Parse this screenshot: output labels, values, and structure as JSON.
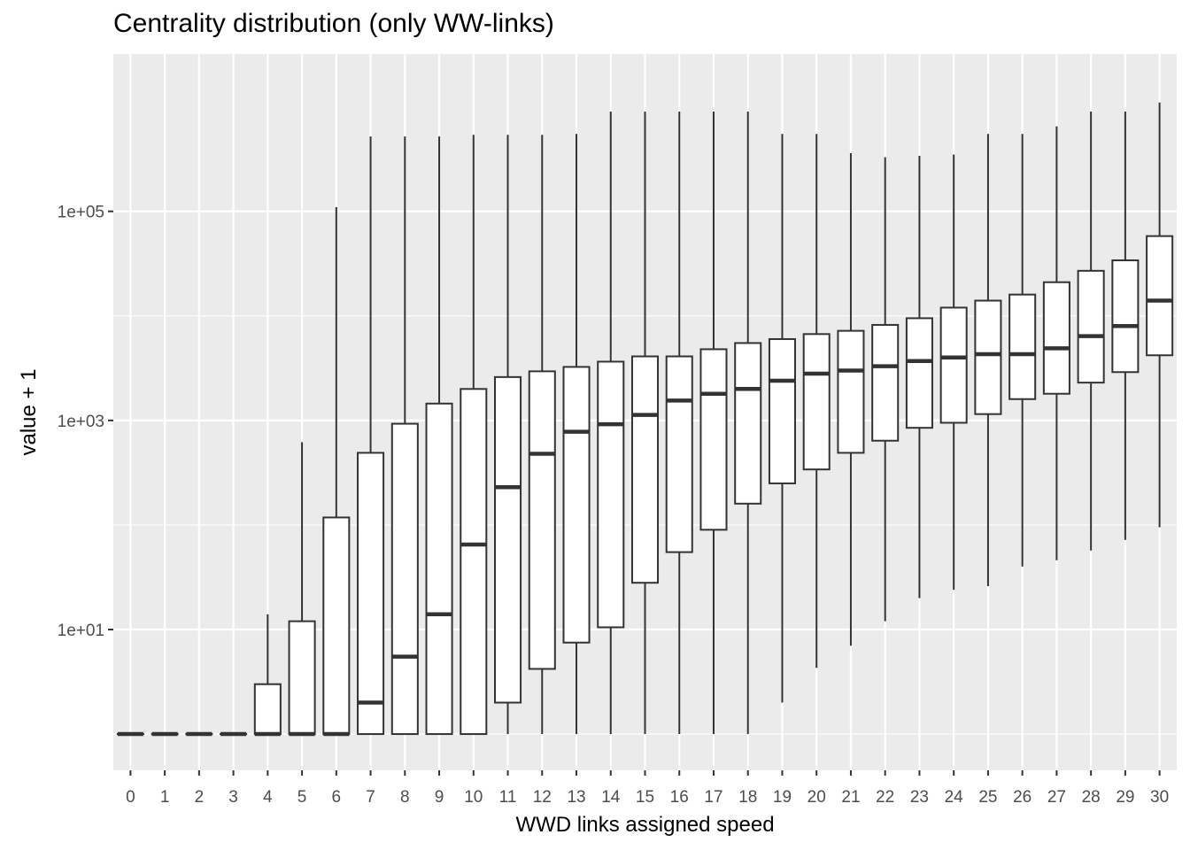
{
  "chart_data": {
    "type": "boxplot",
    "title": "Centrality distribution (only WW-links)",
    "xlabel": "WWD links assigned speed",
    "ylabel": "value + 1",
    "y_scale": "log10",
    "y_ticks": [
      10,
      1000,
      100000
    ],
    "y_tick_labels": [
      "1e+01",
      "1e+03",
      "1e+05"
    ],
    "y_minor_ticks": [
      1,
      100,
      10000
    ],
    "ylim": [
      0.45,
      3200000
    ],
    "grid": true,
    "background": "#ebebeb",
    "grid_color": "#ffffff",
    "box_fill": "#ffffff",
    "box_stroke": "#333333",
    "categories": [
      "0",
      "1",
      "2",
      "3",
      "4",
      "5",
      "6",
      "7",
      "8",
      "9",
      "10",
      "11",
      "12",
      "13",
      "14",
      "15",
      "16",
      "17",
      "18",
      "19",
      "20",
      "21",
      "22",
      "23",
      "24",
      "25",
      "26",
      "27",
      "28",
      "29",
      "30"
    ],
    "boxes": [
      {
        "min": 1,
        "q1": 1,
        "median": 1,
        "q3": 1,
        "max": 1
      },
      {
        "min": 1,
        "q1": 1,
        "median": 1,
        "q3": 1,
        "max": 1
      },
      {
        "min": 1,
        "q1": 1,
        "median": 1,
        "q3": 1,
        "max": 1
      },
      {
        "min": 1,
        "q1": 1,
        "median": 1,
        "q3": 1,
        "max": 1
      },
      {
        "min": 1,
        "q1": 1,
        "median": 1,
        "q3": 3,
        "max": 14
      },
      {
        "min": 1,
        "q1": 1,
        "median": 1,
        "q3": 12,
        "max": 620
      },
      {
        "min": 1,
        "q1": 1,
        "median": 1,
        "q3": 118,
        "max": 110000
      },
      {
        "min": 1,
        "q1": 1,
        "median": 2,
        "q3": 490,
        "max": 520000
      },
      {
        "min": 1,
        "q1": 1,
        "median": 5.5,
        "q3": 930,
        "max": 520000
      },
      {
        "min": 1,
        "q1": 1,
        "median": 14,
        "q3": 1450,
        "max": 520000
      },
      {
        "min": 1,
        "q1": 1,
        "median": 65,
        "q3": 2000,
        "max": 540000
      },
      {
        "min": 1,
        "q1": 2,
        "median": 230,
        "q3": 2600,
        "max": 540000
      },
      {
        "min": 1,
        "q1": 4.2,
        "median": 480,
        "q3": 2950,
        "max": 540000
      },
      {
        "min": 1,
        "q1": 7.5,
        "median": 780,
        "q3": 3250,
        "max": 550000
      },
      {
        "min": 1,
        "q1": 10.5,
        "median": 920,
        "q3": 3650,
        "max": 900000
      },
      {
        "min": 1,
        "q1": 28,
        "median": 1130,
        "q3": 4100,
        "max": 900000
      },
      {
        "min": 1,
        "q1": 55,
        "median": 1550,
        "q3": 4100,
        "max": 900000
      },
      {
        "min": 1,
        "q1": 90,
        "median": 1800,
        "q3": 4800,
        "max": 900000
      },
      {
        "min": 1,
        "q1": 160,
        "median": 2000,
        "q3": 5500,
        "max": 900000
      },
      {
        "min": 2,
        "q1": 250,
        "median": 2400,
        "q3": 6000,
        "max": 550000
      },
      {
        "min": 4.3,
        "q1": 340,
        "median": 2800,
        "q3": 6700,
        "max": 550000
      },
      {
        "min": 7,
        "q1": 490,
        "median": 3000,
        "q3": 7200,
        "max": 360000
      },
      {
        "min": 12,
        "q1": 640,
        "median": 3300,
        "q3": 8200,
        "max": 330000
      },
      {
        "min": 20,
        "q1": 850,
        "median": 3700,
        "q3": 9500,
        "max": 340000
      },
      {
        "min": 24,
        "q1": 950,
        "median": 4000,
        "q3": 12000,
        "max": 350000
      },
      {
        "min": 26,
        "q1": 1150,
        "median": 4300,
        "q3": 14000,
        "max": 550000
      },
      {
        "min": 40,
        "q1": 1600,
        "median": 4300,
        "q3": 16000,
        "max": 550000
      },
      {
        "min": 46,
        "q1": 1800,
        "median": 4900,
        "q3": 21000,
        "max": 650000
      },
      {
        "min": 57,
        "q1": 2300,
        "median": 6400,
        "q3": 27000,
        "max": 900000
      },
      {
        "min": 72,
        "q1": 2900,
        "median": 8000,
        "q3": 34000,
        "max": 900000
      },
      {
        "min": 95,
        "q1": 4200,
        "median": 14000,
        "q3": 58000,
        "max": 1100000
      }
    ]
  }
}
